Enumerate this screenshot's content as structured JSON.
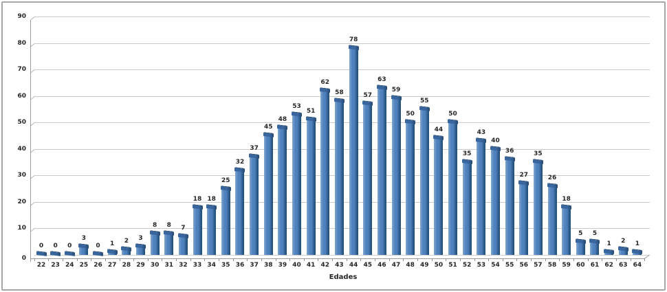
{
  "chart_data": {
    "type": "bar",
    "style": "3d-column",
    "title": "",
    "xlabel": "Edades",
    "ylabel": "",
    "categories": [
      "22",
      "23",
      "24",
      "25",
      "26",
      "27",
      "28",
      "29",
      "30",
      "31",
      "32",
      "33",
      "34",
      "35",
      "36",
      "37",
      "38",
      "39",
      "40",
      "41",
      "42",
      "43",
      "44",
      "45",
      "46",
      "47",
      "48",
      "49",
      "50",
      "51",
      "52",
      "53",
      "54",
      "55",
      "56",
      "57",
      "58",
      "59",
      "60",
      "61",
      "62",
      "63",
      "64"
    ],
    "values": [
      0,
      0,
      0,
      3,
      0,
      1,
      2,
      3,
      8,
      8,
      7,
      18,
      18,
      25,
      32,
      37,
      45,
      48,
      53,
      51,
      62,
      58,
      78,
      57,
      63,
      59,
      50,
      55,
      44,
      50,
      35,
      43,
      40,
      36,
      27,
      35,
      26,
      18,
      5,
      5,
      1,
      2,
      1
    ],
    "ylim": [
      0,
      90
    ],
    "yticks": [
      0,
      10,
      20,
      30,
      40,
      50,
      60,
      70,
      80,
      90
    ],
    "grid": true,
    "legend": null,
    "colors": {
      "bar": "#4f81bd",
      "bar_light": "#7fa5d1",
      "bar_dark": "#2c5a88",
      "bar_edge": "#1f4e79",
      "cap": "#3a66a0",
      "cap_dark": "#27496f",
      "gridline": "#c9c9c9",
      "axis": "#9b9b9b",
      "text": "#262626",
      "frame_border": "#a6a6a6"
    }
  }
}
